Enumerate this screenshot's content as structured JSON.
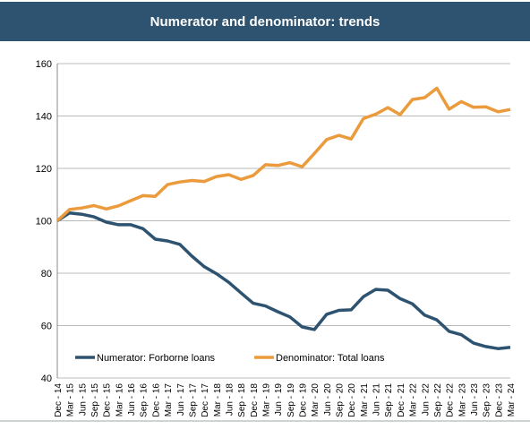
{
  "chart_data": {
    "type": "line",
    "title": "Numerator and denominator: trends",
    "categories": [
      "Dec - 14",
      "Mar - 15",
      "Jun - 15",
      "Sep - 15",
      "Dec - 15",
      "Mar - 16",
      "Jun - 16",
      "Sep - 16",
      "Dec - 16",
      "Mar - 17",
      "Jun - 17",
      "Sep - 17",
      "Dec - 17",
      "Mar - 18",
      "Jun - 18",
      "Sep - 18",
      "Dec - 18",
      "Mar - 19",
      "Jun - 19",
      "Sep - 19",
      "Dec - 19",
      "Mar - 20",
      "Jun - 20",
      "Sep - 20",
      "Dec - 20",
      "Mar - 21",
      "Jun - 21",
      "Sep - 21",
      "Dec - 21",
      "Mar - 22",
      "Jun - 22",
      "Sep - 22",
      "Dec - 22",
      "Mar - 23",
      "Jun - 23",
      "Sep - 23",
      "Dec - 23",
      "Mar - 24"
    ],
    "series": [
      {
        "name": "Numerator: Forborne loans",
        "color": "#2e5370",
        "values": [
          100,
          103,
          102.5,
          101.5,
          99.5,
          98.5,
          98.5,
          97,
          93,
          92.3,
          91,
          86.5,
          82.5,
          79.8,
          76.5,
          72.5,
          68.5,
          67.5,
          65.3,
          63.3,
          59.5,
          58.5,
          64.3,
          65.8,
          66,
          71,
          73.8,
          73.5,
          70.3,
          68.3,
          64,
          62.2,
          57.8,
          56.5,
          53.3,
          52,
          51.2,
          51.7
        ]
      },
      {
        "name": "Denominator: Total loans",
        "color": "#eb9a3c",
        "values": [
          100,
          104.3,
          104.9,
          105.8,
          104.5,
          105.7,
          107.7,
          109.6,
          109.3,
          113.8,
          114.8,
          115.4,
          115,
          116.9,
          117.6,
          115.8,
          117.3,
          121.4,
          121.1,
          122.2,
          120.6,
          125.7,
          131,
          132.6,
          131.2,
          139,
          140.7,
          143.2,
          140.5,
          146.3,
          147,
          150.6,
          142.6,
          145.5,
          143.3,
          143.5,
          141.6,
          142.5
        ]
      }
    ],
    "ylim": [
      40,
      160
    ],
    "yticks": [
      40,
      60,
      80,
      100,
      120,
      140,
      160
    ],
    "grid": true,
    "legend": "bottom-left"
  }
}
